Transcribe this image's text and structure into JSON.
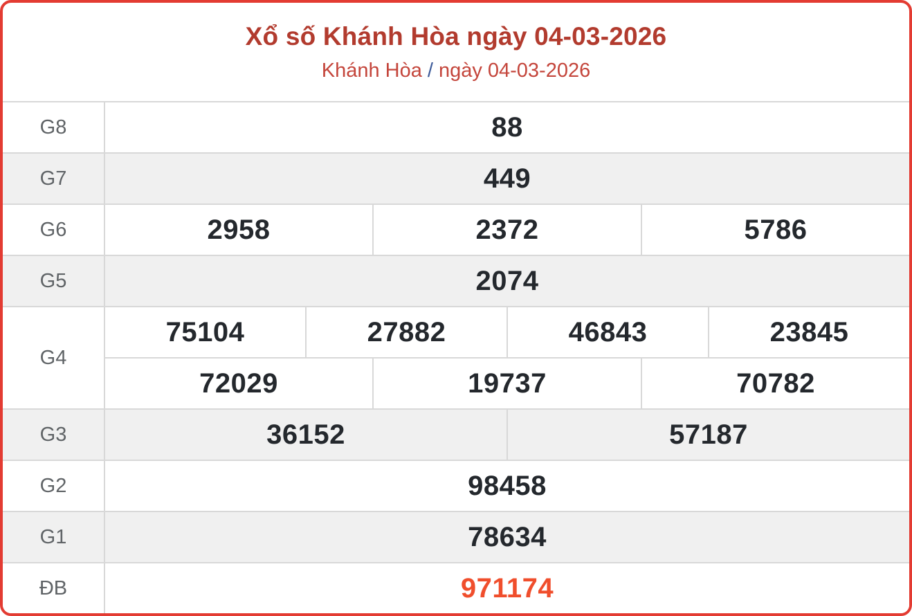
{
  "header": {
    "title": "Xổ số Khánh Hòa ngày 04-03-2026",
    "breadcrumb": {
      "region": "Khánh Hòa",
      "separator": "/",
      "date": "ngày 04-03-2026"
    }
  },
  "results": {
    "rows": [
      {
        "label": "G8",
        "groups": [
          [
            "88"
          ]
        ]
      },
      {
        "label": "G7",
        "groups": [
          [
            "449"
          ]
        ]
      },
      {
        "label": "G6",
        "groups": [
          [
            "2958",
            "2372",
            "5786"
          ]
        ]
      },
      {
        "label": "G5",
        "groups": [
          [
            "2074"
          ]
        ]
      },
      {
        "label": "G4",
        "groups": [
          [
            "75104",
            "27882",
            "46843",
            "23845"
          ],
          [
            "72029",
            "19737",
            "70782"
          ]
        ]
      },
      {
        "label": "G3",
        "groups": [
          [
            "36152",
            "57187"
          ]
        ]
      },
      {
        "label": "G2",
        "groups": [
          [
            "98458"
          ]
        ]
      },
      {
        "label": "G1",
        "groups": [
          [
            "78634"
          ]
        ]
      },
      {
        "label": "ĐB",
        "groups": [
          [
            "971174"
          ]
        ],
        "highlight": true
      }
    ]
  },
  "colors": {
    "card_border_red": "#e33b32",
    "title_red": "#b23b2e",
    "breadcrumb_red": "#c4453b",
    "separator_blue": "#3c5a99",
    "special_prize_orange": "#f04e2c",
    "shaded_row_gray": "#f0f0f0",
    "divider_gray": "#d8d8d8",
    "label_gray": "#5f6366",
    "value_dark": "#24282d"
  }
}
